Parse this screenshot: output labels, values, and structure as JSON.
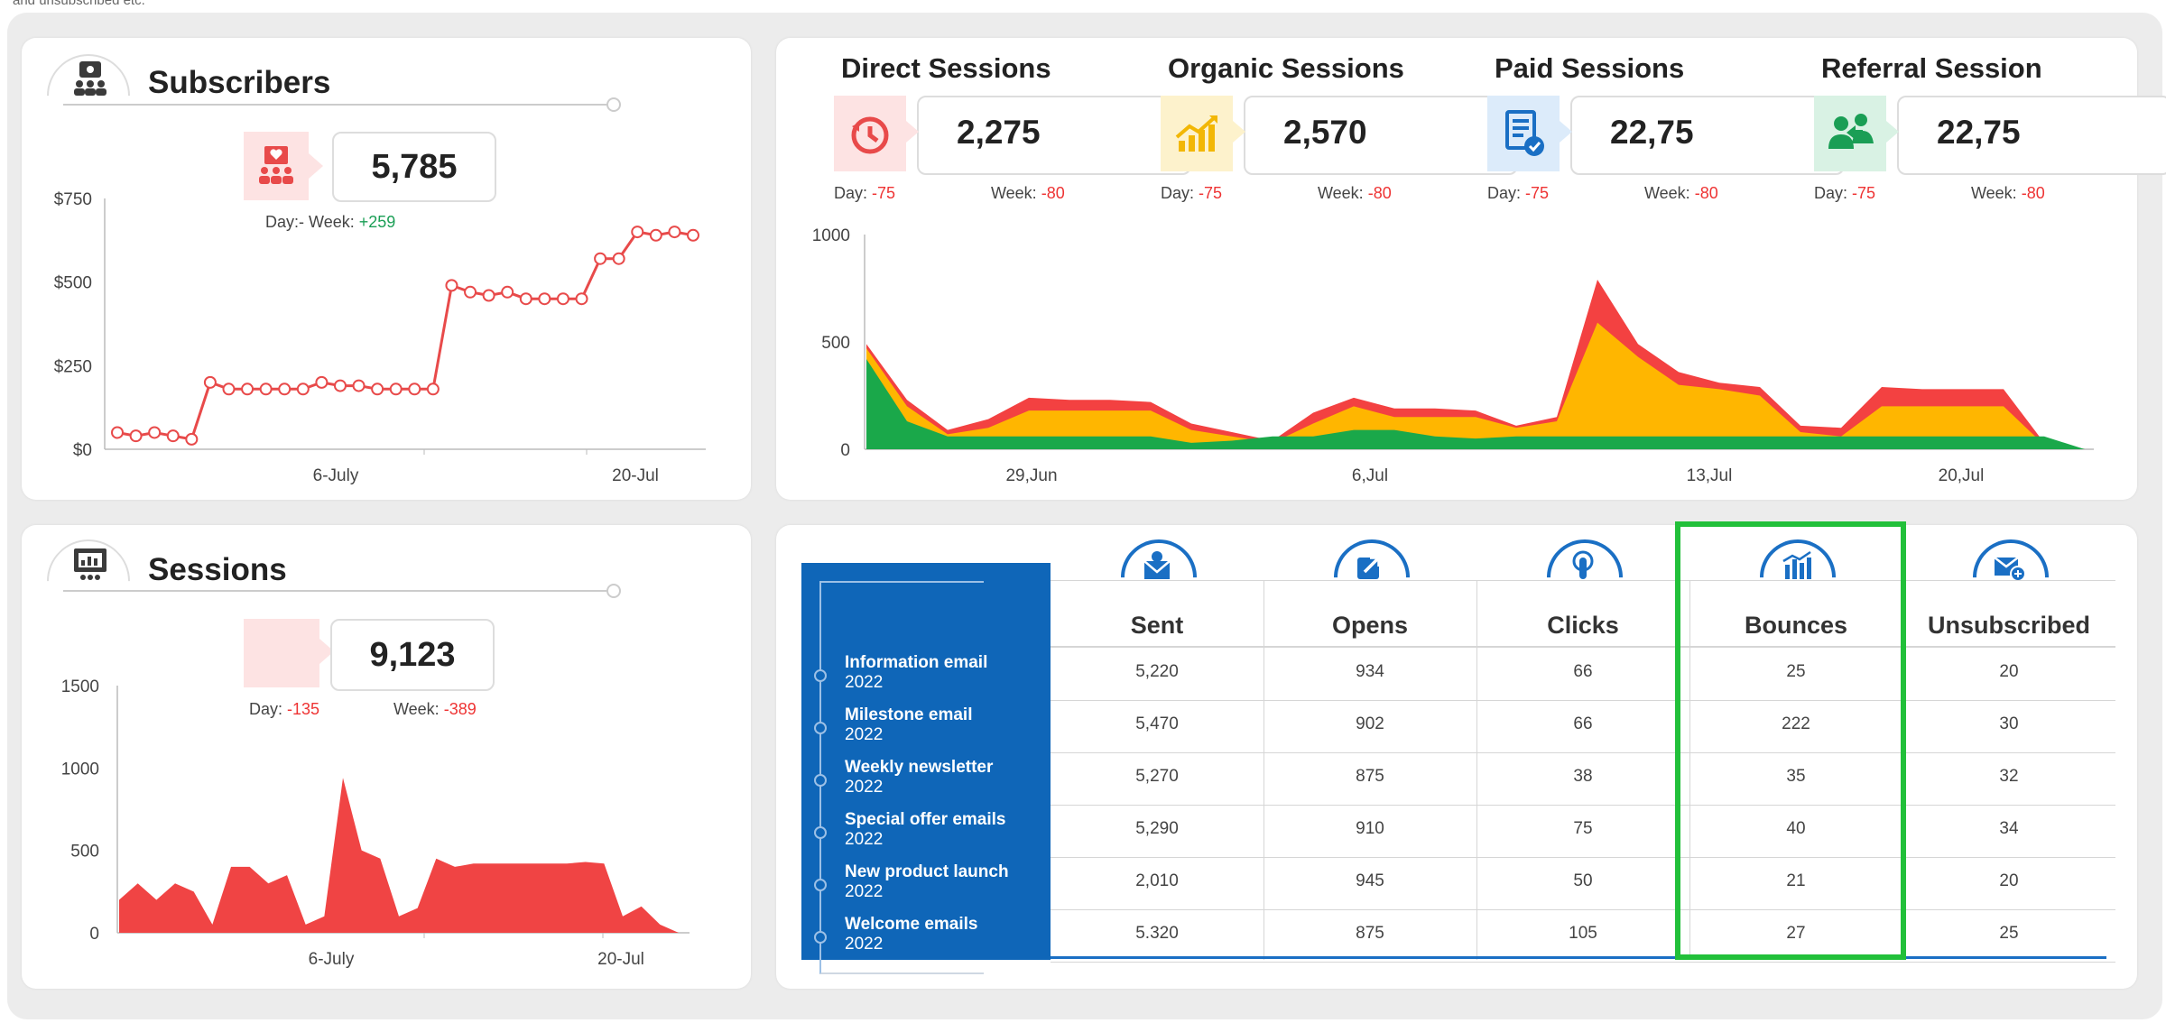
{
  "top_note": "and unsubscribed etc.",
  "subscribers": {
    "title": "Subscribers",
    "value": "5,785",
    "day_label": "Day:-",
    "week_label": "Week:",
    "week_value": "+259",
    "y_ticks": [
      "$750",
      "$500",
      "$250",
      "$0"
    ],
    "x_ticks": [
      "6-July",
      "20-Jul"
    ]
  },
  "sessions": {
    "title": "Sessions",
    "value": "9,123",
    "day_label": "Day:",
    "day_value": "-135",
    "week_label": "Week:",
    "week_value": "-389",
    "y_ticks": [
      "1500",
      "1000",
      "500",
      "0"
    ],
    "x_ticks": [
      "6-July",
      "20-Jul"
    ]
  },
  "sources": [
    {
      "title": "Direct Sessions",
      "value": "2,275",
      "day_label": "Day:",
      "day_value": "-75",
      "week_label": "Week:",
      "week_value": "-80",
      "icon": "clock-icon",
      "color": "#e84a4a",
      "bg": "#fde3e3"
    },
    {
      "title": "Organic Sessions",
      "value": "2,570",
      "day_label": "Day:",
      "day_value": "-75",
      "week_label": "Week:",
      "week_value": "-80",
      "icon": "growth-chart-icon",
      "color": "#f2b705",
      "bg": "#fdf2cc"
    },
    {
      "title": "Paid Sessions",
      "value": "22,75",
      "day_label": "Day:",
      "day_value": "-75",
      "week_label": "Week:",
      "week_value": "-80",
      "icon": "document-check-icon",
      "color": "#1a6fc4",
      "bg": "#dcebfa"
    },
    {
      "title": "Referral Session",
      "value": "22,75",
      "day_label": "Day:",
      "day_value": "-75",
      "week_label": "Week:",
      "week_value": "-80",
      "icon": "users-referral-icon",
      "color": "#1a9e55",
      "bg": "#d9f2e4"
    }
  ],
  "area_chart": {
    "y_ticks": [
      "1000",
      "500",
      "0"
    ],
    "x_ticks": [
      "29,Jun",
      "6,Jul",
      "13,Jul",
      "20,Jul"
    ]
  },
  "email_table": {
    "columns": [
      "Sent",
      "Opens",
      "Clicks",
      "Bounces",
      "Unsubscribed"
    ],
    "column_icons": [
      "envelope-sent-icon",
      "open-arrow-icon",
      "click-hand-icon",
      "bar-chart-icon",
      "envelope-plus-icon"
    ],
    "rows": [
      {
        "name": "Information email",
        "year": "2022",
        "values": [
          "5,220",
          "934",
          "66",
          "25",
          "20"
        ]
      },
      {
        "name": "Milestone email",
        "year": "2022",
        "values": [
          "5,470",
          "902",
          "66",
          "222",
          "30"
        ]
      },
      {
        "name": "Weekly newsletter",
        "year": "2022",
        "values": [
          "5,270",
          "875",
          "38",
          "35",
          "32"
        ]
      },
      {
        "name": "Special offer emails",
        "year": "2022",
        "values": [
          "5,290",
          "910",
          "75",
          "40",
          "34"
        ]
      },
      {
        "name": "New product launch",
        "year": "2022",
        "values": [
          "2,010",
          "945",
          "50",
          "21",
          "20"
        ]
      },
      {
        "name": "Welcome emails",
        "year": "2022",
        "values": [
          "5.320",
          "875",
          "105",
          "27",
          "25"
        ]
      }
    ],
    "highlight_color": "#22c03a"
  },
  "chart_data": [
    {
      "type": "line",
      "title": "Subscribers",
      "x_ticks": [
        "6-July",
        "20-Jul"
      ],
      "ylim": [
        0,
        750
      ],
      "y_ticks": [
        "$0",
        "$250",
        "$500",
        "$750"
      ],
      "values": [
        50,
        40,
        50,
        40,
        30,
        200,
        180,
        180,
        180,
        180,
        180,
        200,
        190,
        190,
        180,
        180,
        180,
        180,
        490,
        470,
        460,
        470,
        450,
        450,
        450,
        450,
        570,
        570,
        650,
        640,
        650,
        640
      ],
      "color": "#e84a4a"
    },
    {
      "type": "area",
      "title": "Sessions",
      "x_ticks": [
        "6-July",
        "20-Jul"
      ],
      "ylim": [
        0,
        1500
      ],
      "y_ticks": [
        "0",
        "500",
        "1000",
        "1500"
      ],
      "values": [
        200,
        300,
        200,
        300,
        250,
        50,
        400,
        400,
        300,
        350,
        50,
        100,
        940,
        500,
        450,
        100,
        150,
        450,
        400,
        420,
        420,
        420,
        420,
        420,
        420,
        430,
        420,
        100,
        160,
        50,
        0
      ],
      "color": "#f04444"
    },
    {
      "type": "area",
      "x_ticks": [
        "29,Jun",
        "6,Jul",
        "13,Jul",
        "20,Jul"
      ],
      "ylim": [
        0,
        1000
      ],
      "y_ticks": [
        "0",
        "500",
        "1000"
      ],
      "series": [
        {
          "values": [
            420,
            130,
            60,
            60,
            60,
            60,
            60,
            60,
            30,
            40,
            60,
            60,
            90,
            90,
            60,
            50,
            60,
            60,
            60,
            60,
            60,
            60,
            60,
            60,
            60,
            60,
            60,
            60,
            60,
            60,
            0
          ],
          "color": "#1aa84a"
        },
        {
          "values": [
            470,
            200,
            70,
            100,
            180,
            180,
            180,
            180,
            90,
            60,
            30,
            120,
            200,
            150,
            150,
            150,
            100,
            130,
            590,
            430,
            300,
            280,
            250,
            80,
            60,
            200,
            200,
            200,
            200,
            20,
            0
          ],
          "color": "#ffb600"
        },
        {
          "values": [
            490,
            230,
            90,
            140,
            240,
            230,
            230,
            220,
            120,
            80,
            40,
            170,
            240,
            190,
            190,
            180,
            110,
            150,
            790,
            490,
            360,
            310,
            290,
            110,
            100,
            290,
            280,
            280,
            280,
            30,
            0
          ],
          "color": "#f34141"
        }
      ]
    }
  ]
}
